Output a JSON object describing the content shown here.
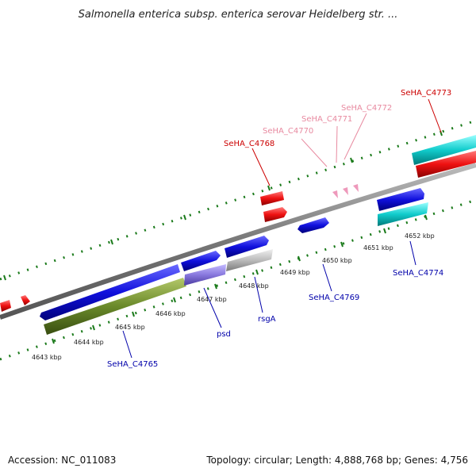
{
  "title": "Salmonella enterica subsp. enterica serovar Heidelberg str. ...",
  "footer": {
    "accession": "Accession: NC_011083",
    "topology": "Topology: circular; Length: 4,888,768 bp; Genes: 4,756"
  },
  "scale_labels": [
    "4643 kbp",
    "4644 kbp",
    "4645 kbp",
    "4646 kbp",
    "4647 kbp",
    "4648 kbp",
    "4649 kbp",
    "4650 kbp",
    "4651 kbp",
    "4652 kbp"
  ],
  "gene_labels": [
    {
      "text": "SeHA_C4765",
      "color": "#0000aa"
    },
    {
      "text": "psd",
      "color": "#0000aa"
    },
    {
      "text": "rsgA",
      "color": "#0000aa"
    },
    {
      "text": "SeHA_C4769",
      "color": "#0000aa"
    },
    {
      "text": "SeHA_C4774",
      "color": "#0000aa"
    },
    {
      "text": "SeHA_C4768",
      "color": "#cc0000"
    },
    {
      "text": "SeHA_C4770",
      "color": "#e88aa0"
    },
    {
      "text": "SeHA_C4771",
      "color": "#e88aa0"
    },
    {
      "text": "SeHA_C4772",
      "color": "#e88aa0"
    },
    {
      "text": "SeHA_C4773",
      "color": "#cc0000"
    }
  ],
  "colors": {
    "backbone": "#888888",
    "tick_green": "#1a7a1a",
    "gene_blue": "#1010dd",
    "gene_red": "#ee1111",
    "gene_cyan": "#11cccc",
    "gene_green": "#6a8a2a",
    "gene_purple": "#8878dd",
    "gene_grey": "#bbbbbb",
    "gene_pink": "#ee99bb"
  }
}
